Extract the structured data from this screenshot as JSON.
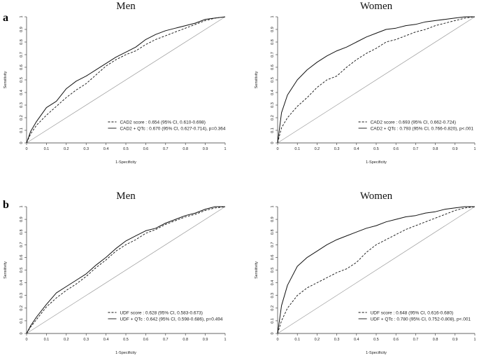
{
  "figure": {
    "panel_labels": [
      "a",
      "b"
    ]
  },
  "chart_data": [
    {
      "type": "line",
      "title": "Men",
      "panel": "a",
      "xlabel": "1-Specificity",
      "ylabel": "Sensitivity",
      "xlim": [
        0,
        1
      ],
      "ylim": [
        0,
        1
      ],
      "x_ticks": [
        "0",
        "0.1",
        "0.2",
        "0.3",
        "0.4",
        "0.5",
        "0.6",
        "0.7",
        "0.8",
        "0.9",
        "1"
      ],
      "y_ticks": [
        "0",
        "0.1",
        "0.2",
        "0.3",
        "0.4",
        "0.5",
        "0.6",
        "0.7",
        "0.8",
        "0.9",
        "1"
      ],
      "reference_line": true,
      "legend_position": "bottom-right",
      "series": [
        {
          "name": "CAD2 score : 0.654 (95% CI, 0.610-0.698)",
          "style": "dashed",
          "x": [
            0,
            0.02,
            0.05,
            0.1,
            0.15,
            0.2,
            0.25,
            0.3,
            0.35,
            0.4,
            0.45,
            0.5,
            0.55,
            0.6,
            0.65,
            0.7,
            0.75,
            0.8,
            0.85,
            0.9,
            0.95,
            1
          ],
          "y": [
            0,
            0.07,
            0.14,
            0.22,
            0.29,
            0.36,
            0.42,
            0.47,
            0.54,
            0.61,
            0.66,
            0.7,
            0.73,
            0.78,
            0.82,
            0.85,
            0.88,
            0.91,
            0.94,
            0.97,
            0.99,
            1
          ]
        },
        {
          "name": "CAD2 + QTc : 0.670 (95% CI, 0.627-0.714), p=0.364",
          "style": "solid",
          "x": [
            0,
            0.02,
            0.05,
            0.1,
            0.15,
            0.2,
            0.25,
            0.3,
            0.35,
            0.4,
            0.45,
            0.5,
            0.55,
            0.6,
            0.65,
            0.7,
            0.75,
            0.8,
            0.85,
            0.9,
            0.95,
            1
          ],
          "y": [
            0,
            0.09,
            0.17,
            0.28,
            0.33,
            0.43,
            0.49,
            0.53,
            0.58,
            0.63,
            0.68,
            0.72,
            0.76,
            0.82,
            0.86,
            0.89,
            0.91,
            0.93,
            0.95,
            0.98,
            0.99,
            1
          ]
        }
      ]
    },
    {
      "type": "line",
      "title": "Women",
      "panel": "a",
      "xlabel": "1-Specificity",
      "ylabel": "Sensitivity",
      "xlim": [
        0,
        1
      ],
      "ylim": [
        0,
        1
      ],
      "x_ticks": [
        "0",
        "0.1",
        "0.2",
        "0.3",
        "0.4",
        "0.5",
        "0.6",
        "0.7",
        "0.8",
        "0.9",
        "1"
      ],
      "y_ticks": [
        "0",
        "0.1",
        "0.2",
        "0.3",
        "0.4",
        "0.5",
        "0.6",
        "0.7",
        "0.8",
        "0.9",
        "1"
      ],
      "reference_line": true,
      "legend_position": "bottom-right",
      "series": [
        {
          "name": "CAD2 score : 0.693 (95% CI, 0.662-0.724)",
          "style": "dashed",
          "x": [
            0,
            0.02,
            0.05,
            0.1,
            0.15,
            0.2,
            0.25,
            0.3,
            0.35,
            0.4,
            0.45,
            0.5,
            0.55,
            0.6,
            0.65,
            0.7,
            0.75,
            0.8,
            0.85,
            0.9,
            0.95,
            1
          ],
          "y": [
            0,
            0.12,
            0.2,
            0.29,
            0.36,
            0.44,
            0.5,
            0.53,
            0.6,
            0.66,
            0.71,
            0.75,
            0.8,
            0.82,
            0.85,
            0.88,
            0.9,
            0.93,
            0.95,
            0.97,
            0.99,
            1
          ]
        },
        {
          "name": "CAD2 + QTc : 0.793 (95% CI, 0.766-0.820), p<.001",
          "style": "solid",
          "x": [
            0,
            0.02,
            0.05,
            0.1,
            0.15,
            0.2,
            0.25,
            0.3,
            0.35,
            0.4,
            0.45,
            0.5,
            0.55,
            0.6,
            0.65,
            0.7,
            0.75,
            0.8,
            0.85,
            0.9,
            0.95,
            1
          ],
          "y": [
            0,
            0.24,
            0.38,
            0.5,
            0.58,
            0.64,
            0.69,
            0.73,
            0.76,
            0.8,
            0.84,
            0.87,
            0.9,
            0.91,
            0.93,
            0.94,
            0.96,
            0.97,
            0.98,
            0.99,
            1,
            1
          ]
        }
      ]
    },
    {
      "type": "line",
      "title": "Men",
      "panel": "b",
      "xlabel": "1-Specificity",
      "ylabel": "Sensitivity",
      "xlim": [
        0,
        1
      ],
      "ylim": [
        0,
        1
      ],
      "x_ticks": [
        "0",
        "0.1",
        "0.2",
        "0.3",
        "0.4",
        "0.5",
        "0.6",
        "0.7",
        "0.8",
        "0.9",
        "1"
      ],
      "y_ticks": [
        "0",
        "0.1",
        "0.2",
        "0.3",
        "0.4",
        "0.5",
        "0.6",
        "0.7",
        "0.8",
        "0.9",
        "1"
      ],
      "reference_line": true,
      "legend_position": "bottom-right",
      "series": [
        {
          "name": "UDF score : 0.628 (95% CI, 0.583-0.673)",
          "style": "dashed",
          "x": [
            0,
            0.02,
            0.05,
            0.1,
            0.15,
            0.2,
            0.25,
            0.3,
            0.35,
            0.4,
            0.45,
            0.5,
            0.55,
            0.6,
            0.65,
            0.7,
            0.75,
            0.8,
            0.85,
            0.9,
            0.95,
            1
          ],
          "y": [
            0,
            0.05,
            0.11,
            0.21,
            0.28,
            0.34,
            0.39,
            0.45,
            0.52,
            0.58,
            0.65,
            0.7,
            0.74,
            0.79,
            0.82,
            0.86,
            0.89,
            0.92,
            0.94,
            0.97,
            0.99,
            1
          ]
        },
        {
          "name": "UDF + QTc : 0.642 (95% CI, 0.598-0.686), p=0.494",
          "style": "solid",
          "x": [
            0,
            0.02,
            0.05,
            0.1,
            0.15,
            0.2,
            0.25,
            0.3,
            0.35,
            0.4,
            0.45,
            0.5,
            0.55,
            0.6,
            0.65,
            0.7,
            0.75,
            0.8,
            0.85,
            0.9,
            0.95,
            1
          ],
          "y": [
            0,
            0.06,
            0.13,
            0.23,
            0.32,
            0.37,
            0.42,
            0.47,
            0.54,
            0.6,
            0.67,
            0.73,
            0.77,
            0.81,
            0.83,
            0.87,
            0.9,
            0.93,
            0.95,
            0.98,
            1,
            1
          ]
        }
      ]
    },
    {
      "type": "line",
      "title": "Women",
      "panel": "b",
      "xlabel": "1-Specificity",
      "ylabel": "Sensitivity",
      "xlim": [
        0,
        1
      ],
      "ylim": [
        0,
        1
      ],
      "x_ticks": [
        "0",
        "0.1",
        "0.2",
        "0.3",
        "0.4",
        "0.5",
        "0.6",
        "0.7",
        "0.8",
        "0.9",
        "1"
      ],
      "y_ticks": [
        "0",
        "0.1",
        "0.2",
        "0.3",
        "0.4",
        "0.5",
        "0.6",
        "0.7",
        "0.8",
        "0.9",
        "1"
      ],
      "reference_line": true,
      "legend_position": "bottom-right",
      "series": [
        {
          "name": "UDF score : 0.648 (95% CI, 0.616-0.680)",
          "style": "dashed",
          "x": [
            0,
            0.02,
            0.05,
            0.1,
            0.15,
            0.2,
            0.25,
            0.3,
            0.35,
            0.4,
            0.45,
            0.5,
            0.55,
            0.6,
            0.65,
            0.7,
            0.75,
            0.8,
            0.85,
            0.9,
            0.95,
            1
          ],
          "y": [
            0,
            0.1,
            0.2,
            0.3,
            0.36,
            0.4,
            0.44,
            0.48,
            0.51,
            0.56,
            0.64,
            0.7,
            0.74,
            0.78,
            0.82,
            0.85,
            0.88,
            0.91,
            0.94,
            0.97,
            0.99,
            1
          ]
        },
        {
          "name": "UDF + QTc : 0.780 (95% CI, 0.752-0.808), p<.001",
          "style": "solid",
          "x": [
            0,
            0.02,
            0.05,
            0.1,
            0.15,
            0.2,
            0.25,
            0.3,
            0.35,
            0.4,
            0.45,
            0.5,
            0.55,
            0.6,
            0.65,
            0.7,
            0.75,
            0.8,
            0.85,
            0.9,
            0.95,
            1
          ],
          "y": [
            0,
            0.22,
            0.38,
            0.53,
            0.6,
            0.65,
            0.7,
            0.74,
            0.77,
            0.8,
            0.83,
            0.85,
            0.88,
            0.9,
            0.92,
            0.93,
            0.95,
            0.96,
            0.98,
            0.99,
            1,
            1
          ]
        }
      ]
    }
  ]
}
